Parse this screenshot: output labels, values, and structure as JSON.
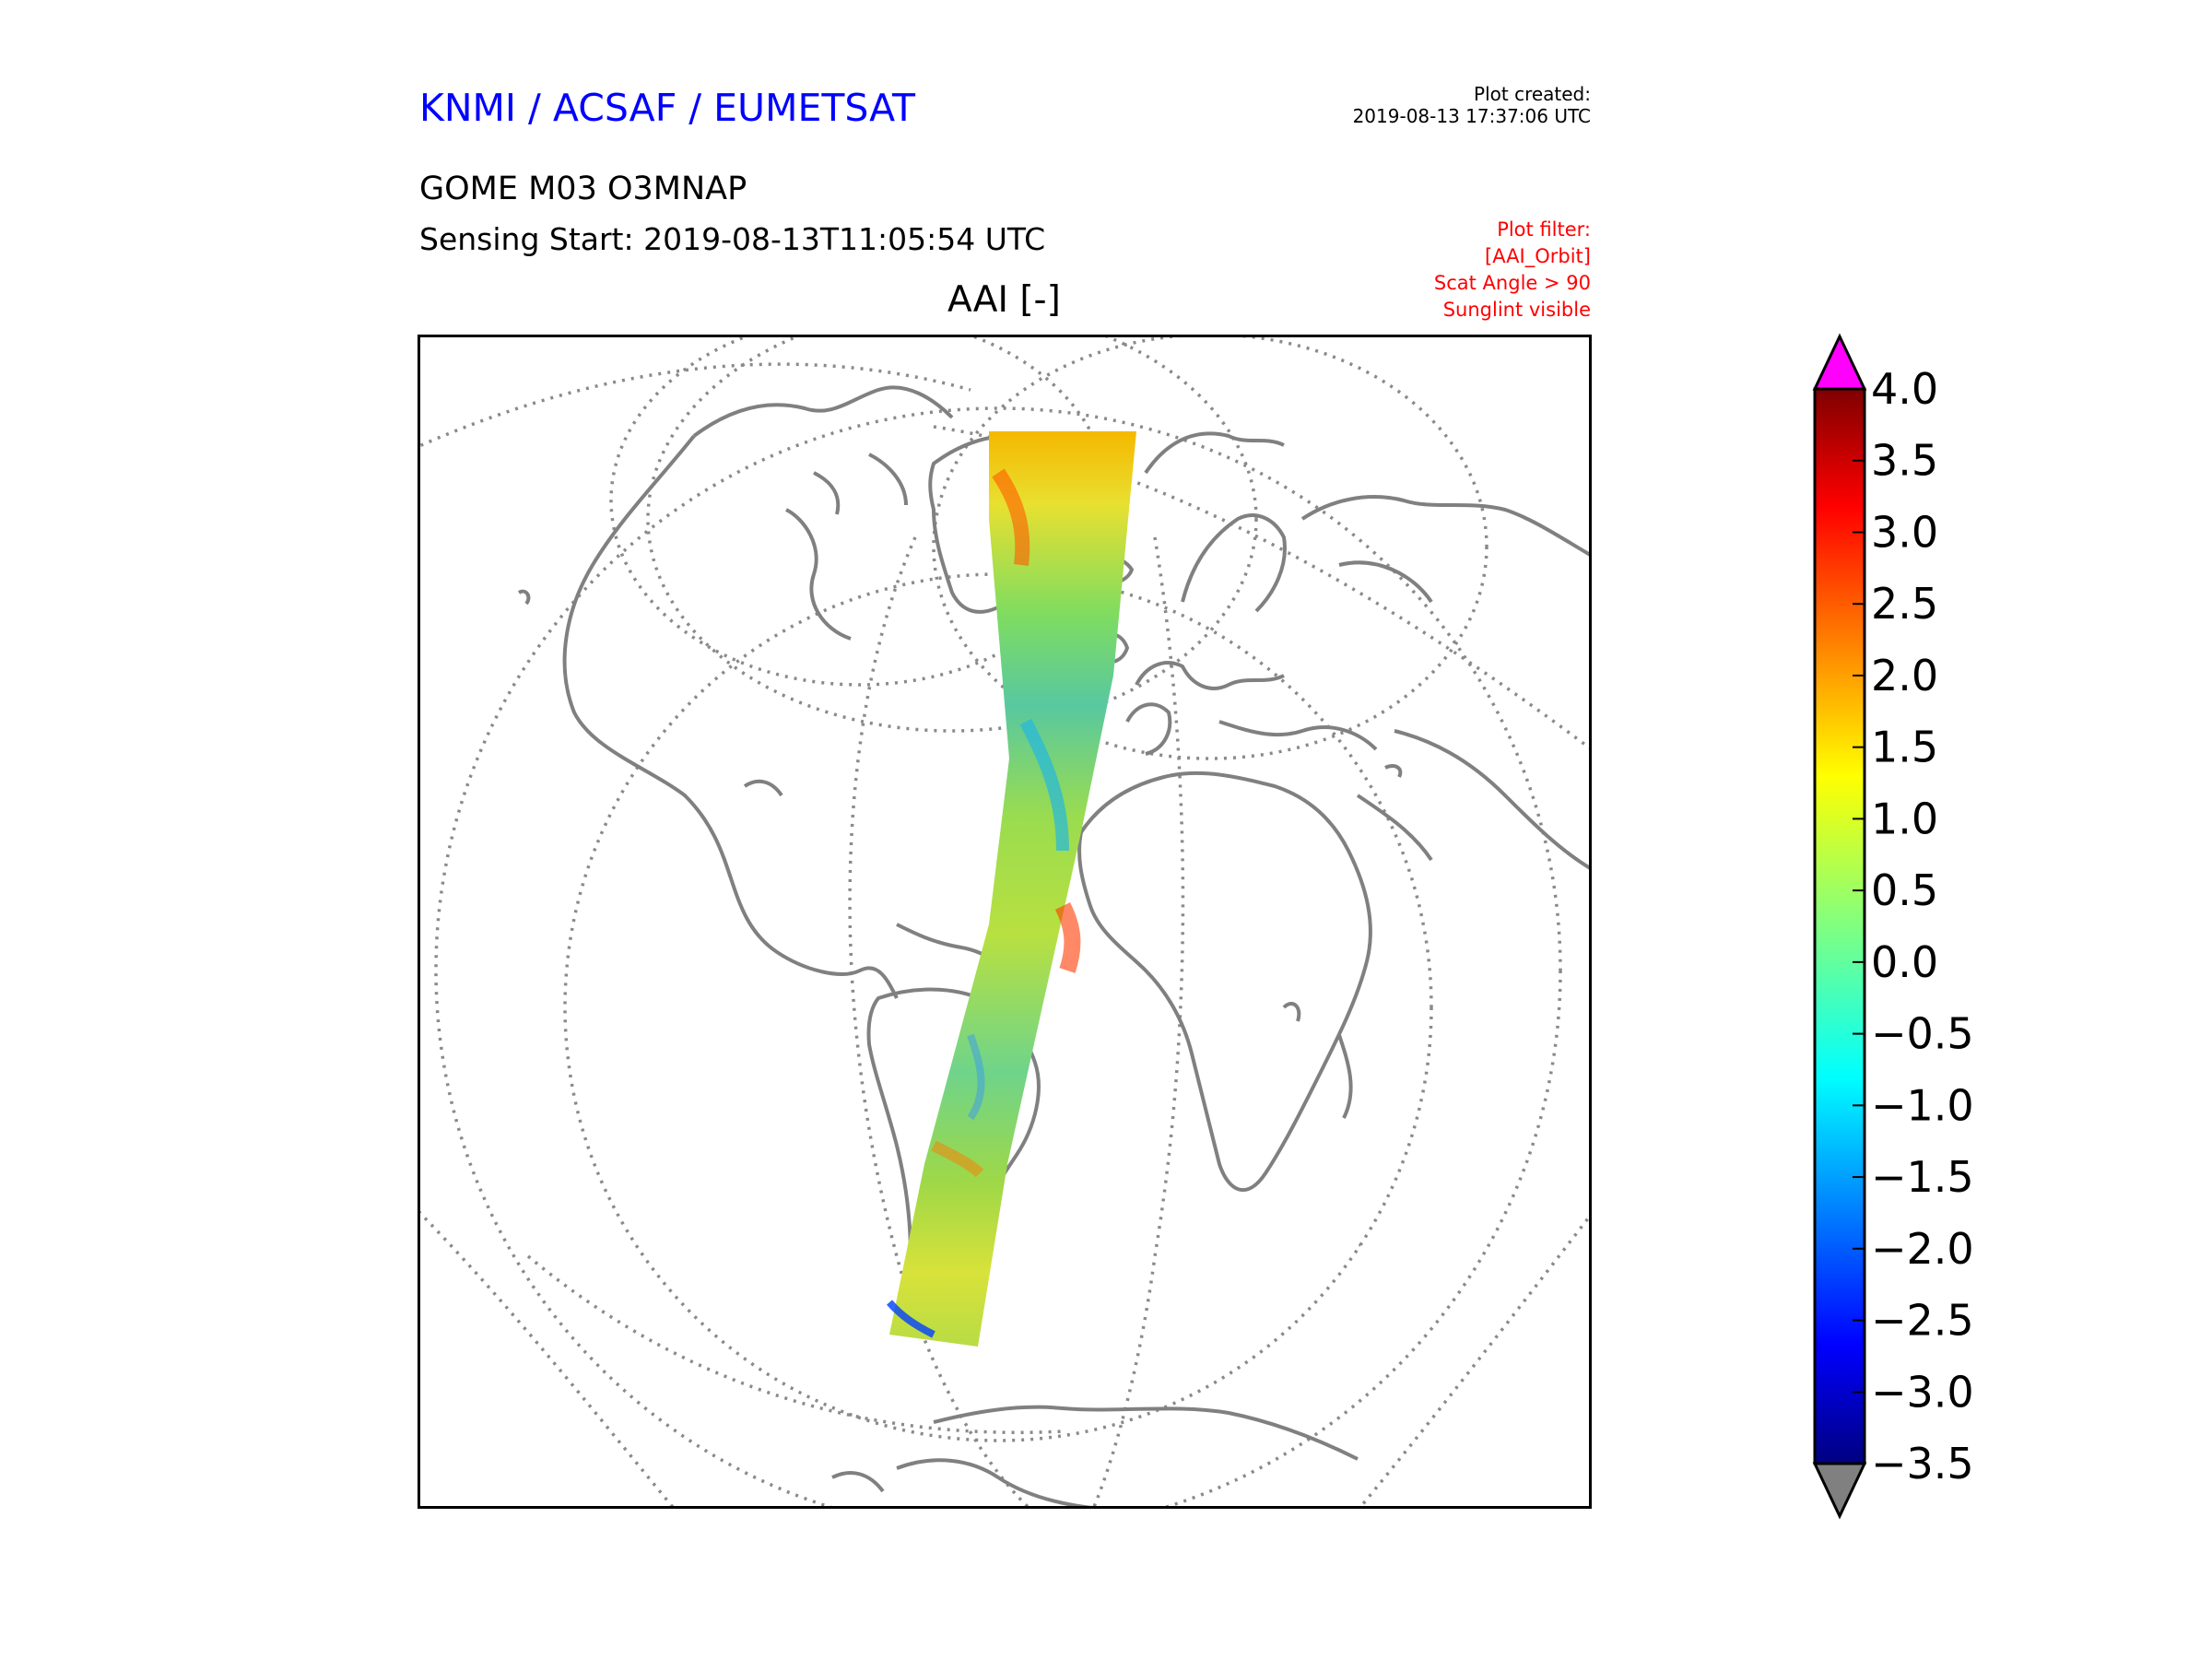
{
  "header": {
    "brand": "KNMI / ACSAF / EUMETSAT",
    "plot_created_label": "Plot created:",
    "plot_created_time": "2019-08-13 17:37:06 UTC",
    "product": "GOME M03 O3MNAP",
    "sensing_start": "Sensing Start: 2019-08-13T11:05:54 UTC",
    "plot_filter": [
      "Plot filter:",
      "[AAI_Orbit]",
      "Scat Angle > 90",
      "Sunglint visible"
    ]
  },
  "map": {
    "title": "AAI [-]",
    "projection": "orthographic",
    "graticule": "dotted",
    "coastline_color": "#808080",
    "variable_colormap": "jet"
  },
  "colorbar": {
    "min": -3.5,
    "max": 4.0,
    "step": 0.5,
    "tick_labels": [
      "4.0",
      "3.5",
      "3.0",
      "2.5",
      "2.0",
      "1.5",
      "1.0",
      "0.5",
      "0.0",
      "−0.5",
      "−1.0",
      "−1.5",
      "−2.0",
      "−2.5",
      "−3.0",
      "−3.5"
    ],
    "over_color": "#ff00ff",
    "under_color": "#808080"
  }
}
